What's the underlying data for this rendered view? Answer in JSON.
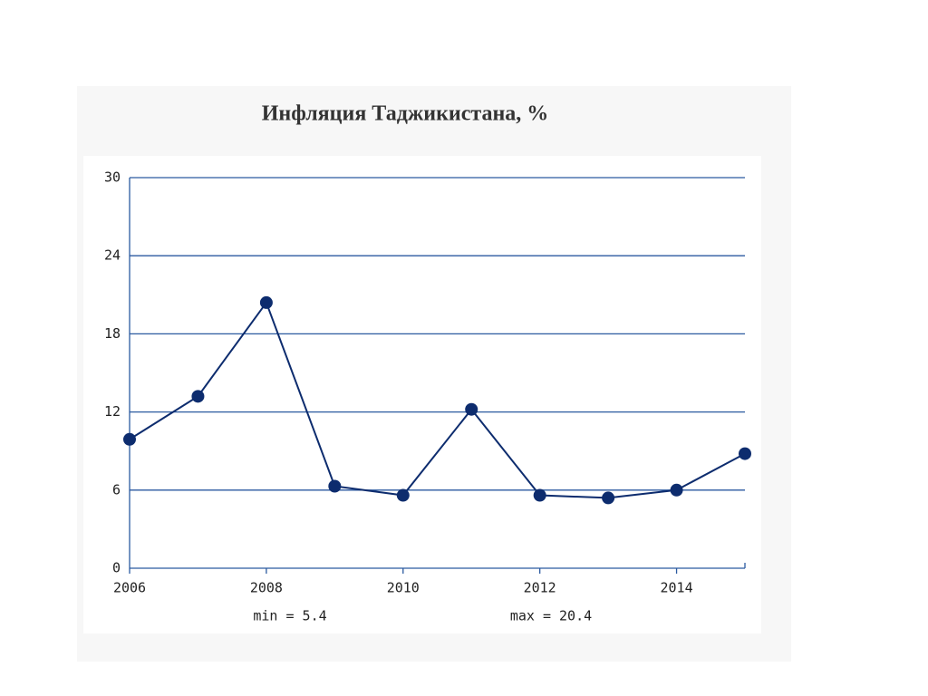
{
  "chart_data": {
    "type": "line",
    "title": "Инфляция Таджикистана, %",
    "x": [
      2006,
      2007,
      2008,
      2009,
      2010,
      2011,
      2012,
      2013,
      2014,
      2015
    ],
    "series": [
      {
        "name": "Инфляция",
        "color": "#0d2c6e",
        "values": [
          9.9,
          13.2,
          20.4,
          6.3,
          5.6,
          12.2,
          5.6,
          5.4,
          6.0,
          8.8
        ]
      }
    ],
    "xlim": [
      2006,
      2015
    ],
    "xticks": [
      2006,
      2008,
      2010,
      2012,
      2014
    ],
    "ylim": [
      0,
      30
    ],
    "yticks": [
      0,
      6,
      12,
      18,
      24,
      30
    ],
    "grid": true,
    "grid_color": "#2b5aa0",
    "annotations": [
      "min = 5.4",
      "max = 20.4"
    ]
  }
}
